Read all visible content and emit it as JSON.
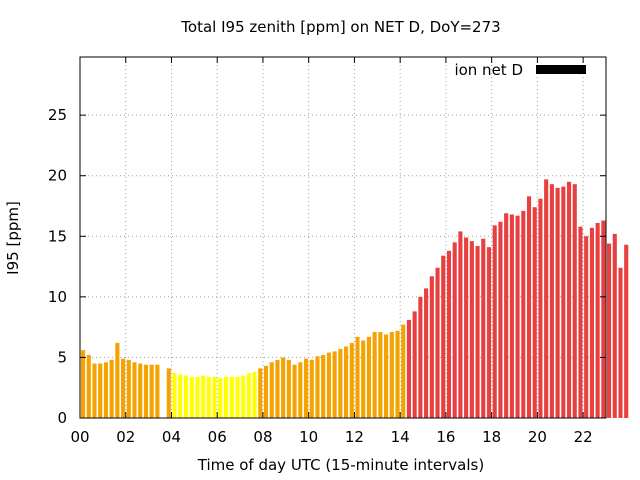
{
  "chart_data": {
    "type": "bar",
    "title": "Total I95 zenith [ppm] on NET D, DoY=273",
    "xlabel": "Time of day UTC (15-minute intervals)",
    "ylabel": "I95 [ppm]",
    "xlim": [
      0,
      23
    ],
    "ylim": [
      0,
      29.8
    ],
    "x_ticks": [
      "00",
      "02",
      "04",
      "06",
      "08",
      "10",
      "12",
      "14",
      "16",
      "18",
      "20",
      "22"
    ],
    "x_tick_values": [
      0,
      2,
      4,
      6,
      8,
      10,
      12,
      14,
      16,
      18,
      20,
      22
    ],
    "y_ticks": [
      "0",
      "5",
      "10",
      "15",
      "20",
      "25"
    ],
    "y_tick_values": [
      0,
      5,
      10,
      15,
      20,
      25
    ],
    "grid": true,
    "legend": {
      "label": "ion net D",
      "color": "#000000",
      "placement": "top-right"
    },
    "bin_width_hours": 0.25,
    "x_start_hours": 0,
    "colors": {
      "low": "#ffff00",
      "mid": "#f5a300",
      "high": "#e84040"
    },
    "thresholds": {
      "mid": 4.0,
      "high": 8.0
    },
    "values": [
      5.6,
      5.2,
      4.5,
      4.5,
      4.6,
      4.8,
      6.2,
      4.9,
      4.8,
      4.6,
      4.5,
      4.4,
      4.4,
      4.4,
      0,
      4.1,
      3.7,
      3.6,
      3.5,
      3.4,
      3.4,
      3.5,
      3.4,
      3.4,
      3.3,
      3.4,
      3.4,
      3.4,
      3.5,
      3.7,
      3.8,
      4.1,
      4.3,
      4.6,
      4.8,
      5.0,
      4.8,
      4.4,
      4.6,
      4.9,
      4.8,
      5.1,
      5.2,
      5.4,
      5.5,
      5.7,
      5.9,
      6.2,
      6.7,
      6.4,
      6.7,
      7.1,
      7.1,
      6.9,
      7.1,
      7.2,
      7.7,
      8.1,
      8.8,
      10.0,
      10.7,
      11.7,
      12.4,
      13.4,
      13.8,
      14.5,
      15.4,
      14.9,
      14.6,
      14.2,
      14.8,
      14.1,
      15.9,
      16.2,
      16.9,
      16.8,
      16.7,
      17.1,
      18.3,
      17.4,
      18.1,
      19.7,
      19.3,
      19.0,
      19.1,
      19.5,
      19.3,
      15.8,
      15.0,
      15.7,
      16.1,
      16.3,
      14.4,
      15.2,
      12.4,
      14.3
    ]
  }
}
